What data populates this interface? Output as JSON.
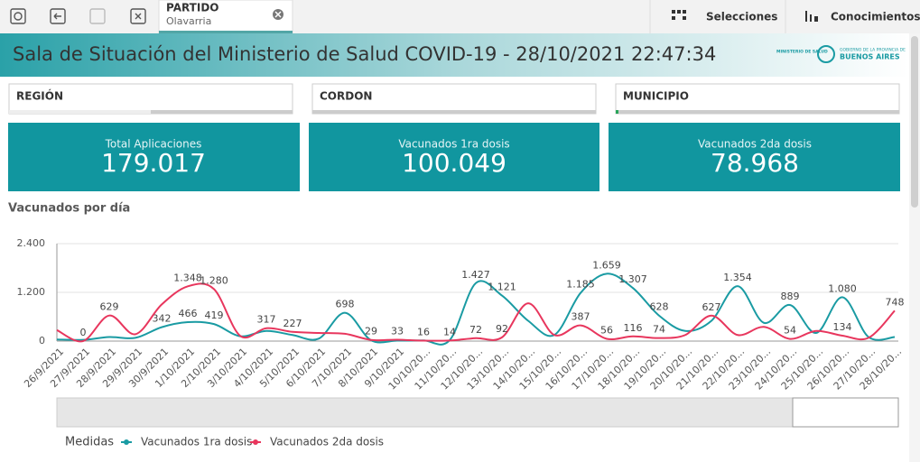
{
  "toolbar": {
    "selection": {
      "field": "PARTIDO",
      "value": "Olavarria"
    },
    "buttons": [
      "Selecciones",
      "Conocimientos"
    ]
  },
  "header": {
    "title": "Sala de Situación del Ministerio de Salud COVID-19 - 28/10/2021 22:47:34",
    "logo": {
      "ministry": "MINISTERIO DE SALUD",
      "government": "GOBIERNO DE LA PROVINCIA DE",
      "province": "BUENOS AIRES"
    }
  },
  "filters": [
    "REGIÓN",
    "CORDON",
    "MUNICIPIO"
  ],
  "kpis": [
    {
      "label": "Total Aplicaciones",
      "value": "179.017"
    },
    {
      "label": "Vacunados 1ra dosis",
      "value": "100.049"
    },
    {
      "label": "Vacunados 2da dosis",
      "value": "78.968"
    }
  ],
  "chart_data": {
    "type": "line",
    "title": "Vacunados por día",
    "legend_title": "Medidas",
    "categories": [
      "26/9/2021",
      "27/9/2021",
      "28/9/2021",
      "29/9/2021",
      "30/9/2021",
      "1/10/2021",
      "2/10/2021",
      "3/10/2021",
      "4/10/2021",
      "5/10/2021",
      "6/10/2021",
      "7/10/2021",
      "8/10/2021",
      "9/10/2021",
      "10/10/20...",
      "11/10/20...",
      "12/10/20...",
      "13/10/20...",
      "14/10/20...",
      "15/10/20...",
      "16/10/20...",
      "17/10/20...",
      "18/10/20...",
      "19/10/20...",
      "20/10/20...",
      "21/10/20...",
      "22/10/20...",
      "23/10/20...",
      "24/10/20...",
      "25/10/20...",
      "26/10/20...",
      "27/10/20...",
      "28/10/20..."
    ],
    "series": [
      {
        "name": "Vacunados 1ra dosis",
        "color": "#1a9ba3",
        "values": [
          40,
          30,
          100,
          80,
          342,
          466,
          419,
          120,
          250,
          150,
          60,
          698,
          20,
          10,
          16,
          20,
          1427,
          1121,
          500,
          150,
          1185,
          1659,
          1307,
          628,
          250,
          500,
          1354,
          450,
          889,
          200,
          1080,
          100,
          100
        ],
        "value_labels": [
          null,
          null,
          null,
          null,
          "342",
          "466",
          "419",
          null,
          null,
          null,
          null,
          "698",
          null,
          null,
          "16",
          null,
          "1.427",
          "1.121",
          null,
          null,
          "1.185",
          "1.659",
          "1.307",
          "628",
          null,
          null,
          "1.354",
          null,
          "889",
          null,
          "1.080",
          null,
          null
        ]
      },
      {
        "name": "Vacunados 2da dosis",
        "color": "#e8365d",
        "values": [
          270,
          0,
          629,
          170,
          900,
          1348,
          1280,
          130,
          317,
          227,
          200,
          180,
          29,
          33,
          10,
          14,
          72,
          92,
          930,
          150,
          387,
          56,
          116,
          74,
          150,
          627,
          150,
          350,
          54,
          250,
          134,
          80,
          748
        ],
        "value_labels": [
          null,
          "0",
          "629",
          null,
          null,
          "1.348",
          "1.280",
          null,
          "317",
          "227",
          null,
          null,
          "29",
          "33",
          null,
          "14",
          "72",
          "92",
          null,
          null,
          "387",
          "56",
          "116",
          "74",
          null,
          "627",
          null,
          null,
          "54",
          null,
          "134",
          null,
          "748"
        ]
      }
    ],
    "ylim": [
      0,
      2400
    ],
    "yticks": [
      0,
      {
        "value": 1200,
        "label": "1.200"
      },
      {
        "value": 2400,
        "label": "2.400"
      }
    ],
    "grid": true
  }
}
